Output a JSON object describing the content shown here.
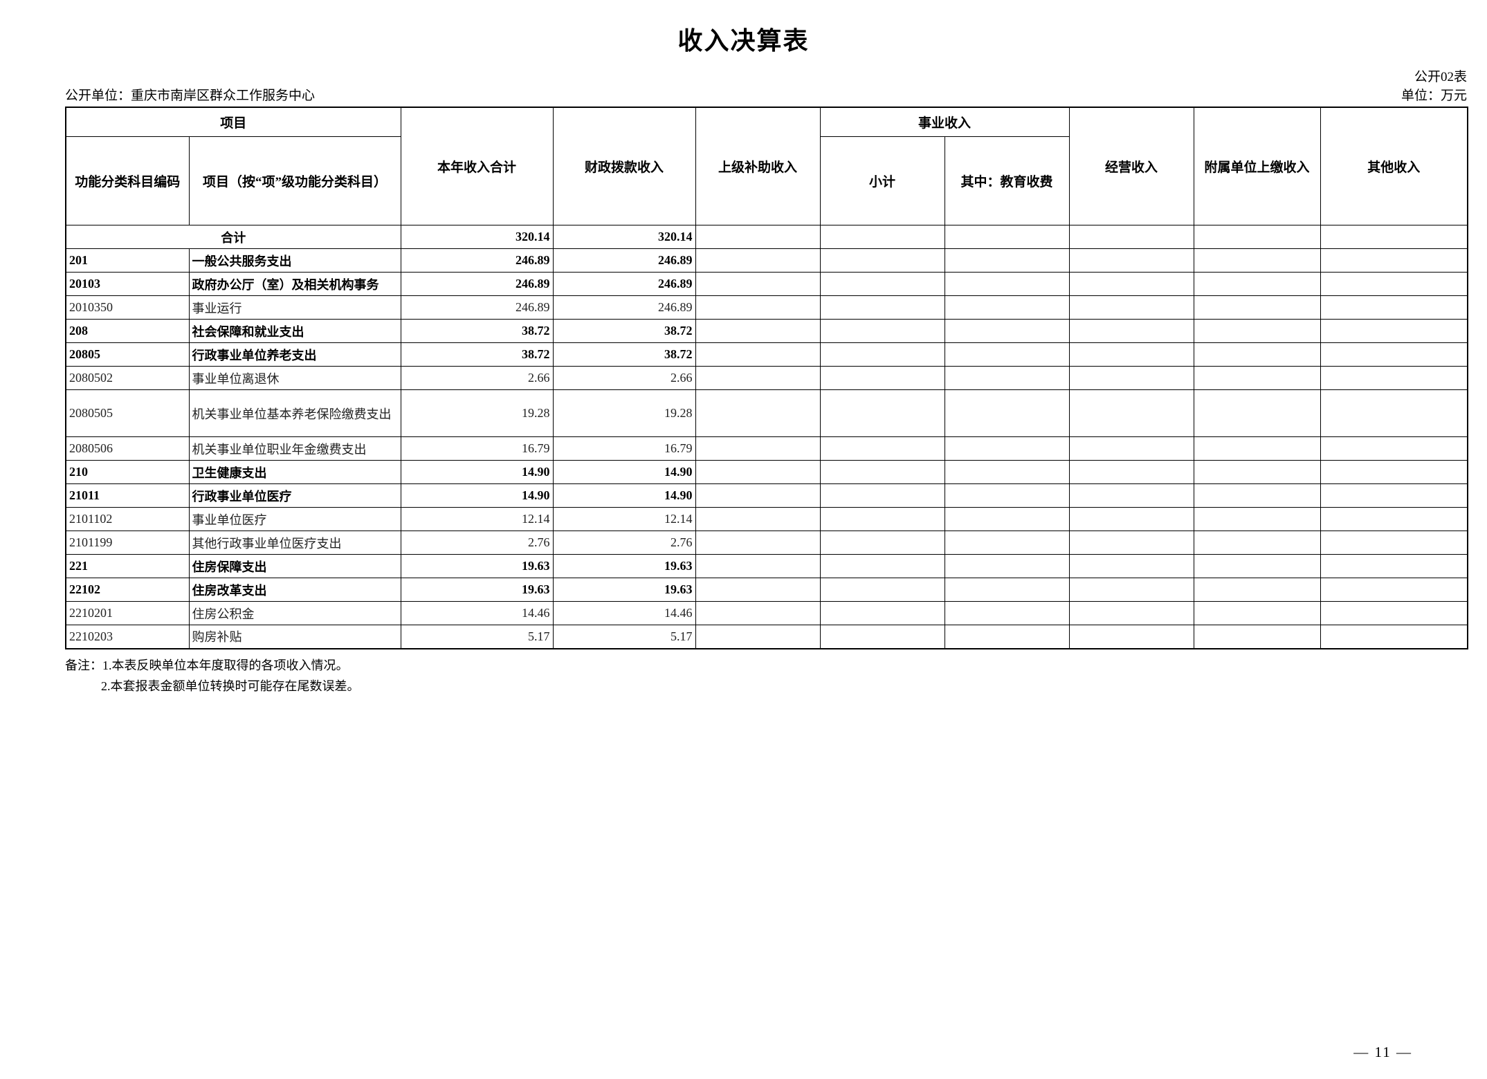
{
  "page": {
    "title": "收入决算表",
    "table_code": "公开02表",
    "unit_label": "公开单位：重庆市南岸区群众工作服务中心",
    "money_unit": "单位：万元",
    "notes": [
      "备注：1.本表反映单位本年度取得的各项收入情况。",
      "2.本套报表金额单位转换时可能存在尾数误差。"
    ],
    "page_number": "— 11 —"
  },
  "table": {
    "header": {
      "project_group": "项目",
      "code_col": "功能分类科目编码",
      "name_col": "项目（按“项”级功能分类科目）",
      "total_col": "本年收入合计",
      "fiscal_col": "财政拨款收入",
      "superior_col": "上级补助收入",
      "business_group": "事业收入",
      "subtotal_col": "小计",
      "education_col": "其中：教育收费",
      "operating_col": "经营收入",
      "affiliated_col": "附属单位上缴收入",
      "other_col": "其他收入"
    },
    "rows": [
      {
        "code": "",
        "name": "合计",
        "merged": true,
        "bold": true,
        "values": [
          "320.14",
          "320.14",
          "",
          "",
          "",
          "",
          "",
          ""
        ]
      },
      {
        "code": "201",
        "name": "一般公共服务支出",
        "bold": true,
        "values": [
          "246.89",
          "246.89",
          "",
          "",
          "",
          "",
          "",
          ""
        ]
      },
      {
        "code": "20103",
        "name": "政府办公厅（室）及相关机构事务",
        "bold": true,
        "values": [
          "246.89",
          "246.89",
          "",
          "",
          "",
          "",
          "",
          ""
        ]
      },
      {
        "code": "2010350",
        "name": "事业运行",
        "bold": false,
        "values": [
          "246.89",
          "246.89",
          "",
          "",
          "",
          "",
          "",
          ""
        ]
      },
      {
        "code": "208",
        "name": "社会保障和就业支出",
        "bold": true,
        "values": [
          "38.72",
          "38.72",
          "",
          "",
          "",
          "",
          "",
          ""
        ]
      },
      {
        "code": "20805",
        "name": "行政事业单位养老支出",
        "bold": true,
        "values": [
          "38.72",
          "38.72",
          "",
          "",
          "",
          "",
          "",
          ""
        ]
      },
      {
        "code": "2080502",
        "name": "事业单位离退休",
        "bold": false,
        "values": [
          "2.66",
          "2.66",
          "",
          "",
          "",
          "",
          "",
          ""
        ]
      },
      {
        "code": "2080505",
        "name": "机关事业单位基本养老保险缴费支出",
        "bold": false,
        "tall": true,
        "values": [
          "19.28",
          "19.28",
          "",
          "",
          "",
          "",
          "",
          ""
        ]
      },
      {
        "code": "2080506",
        "name": "机关事业单位职业年金缴费支出",
        "bold": false,
        "values": [
          "16.79",
          "16.79",
          "",
          "",
          "",
          "",
          "",
          ""
        ]
      },
      {
        "code": "210",
        "name": "卫生健康支出",
        "bold": true,
        "values": [
          "14.90",
          "14.90",
          "",
          "",
          "",
          "",
          "",
          ""
        ]
      },
      {
        "code": "21011",
        "name": "行政事业单位医疗",
        "bold": true,
        "values": [
          "14.90",
          "14.90",
          "",
          "",
          "",
          "",
          "",
          ""
        ]
      },
      {
        "code": "2101102",
        "name": "事业单位医疗",
        "bold": false,
        "values": [
          "12.14",
          "12.14",
          "",
          "",
          "",
          "",
          "",
          ""
        ]
      },
      {
        "code": "2101199",
        "name": "其他行政事业单位医疗支出",
        "bold": false,
        "values": [
          "2.76",
          "2.76",
          "",
          "",
          "",
          "",
          "",
          ""
        ]
      },
      {
        "code": "221",
        "name": "住房保障支出",
        "bold": true,
        "values": [
          "19.63",
          "19.63",
          "",
          "",
          "",
          "",
          "",
          ""
        ]
      },
      {
        "code": "22102",
        "name": "住房改革支出",
        "bold": true,
        "values": [
          "19.63",
          "19.63",
          "",
          "",
          "",
          "",
          "",
          ""
        ]
      },
      {
        "code": "2210201",
        "name": "住房公积金",
        "bold": false,
        "values": [
          "14.46",
          "14.46",
          "",
          "",
          "",
          "",
          "",
          ""
        ]
      },
      {
        "code": "2210203",
        "name": "购房补贴",
        "bold": false,
        "values": [
          "5.17",
          "5.17",
          "",
          "",
          "",
          "",
          "",
          ""
        ]
      }
    ]
  }
}
